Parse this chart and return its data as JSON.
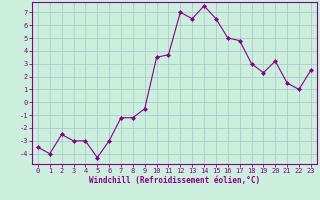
{
  "x": [
    0,
    1,
    2,
    3,
    4,
    5,
    6,
    7,
    8,
    9,
    10,
    11,
    12,
    13,
    14,
    15,
    16,
    17,
    18,
    19,
    20,
    21,
    22,
    23
  ],
  "y": [
    -3.5,
    -4.0,
    -2.5,
    -3.0,
    -3.0,
    -4.3,
    -3.0,
    -1.2,
    -1.2,
    -0.5,
    3.5,
    3.7,
    7.0,
    6.5,
    7.5,
    6.5,
    5.0,
    4.8,
    3.0,
    2.3,
    3.2,
    1.5,
    1.0,
    2.5
  ],
  "line_color": "#880088",
  "marker": "D",
  "marker_size": 2.0,
  "bg_color": "#cceedd",
  "grid_color": "#aacccc",
  "xlabel": "Windchill (Refroidissement éolien,°C)",
  "xlim": [
    -0.5,
    23.5
  ],
  "ylim": [
    -4.8,
    7.8
  ],
  "yticks": [
    -4,
    -3,
    -2,
    -1,
    0,
    1,
    2,
    3,
    4,
    5,
    6,
    7
  ],
  "xticks": [
    0,
    1,
    2,
    3,
    4,
    5,
    6,
    7,
    8,
    9,
    10,
    11,
    12,
    13,
    14,
    15,
    16,
    17,
    18,
    19,
    20,
    21,
    22,
    23
  ],
  "tick_color": "#880088",
  "label_color": "#880088",
  "spine_color": "#880088",
  "tick_fontsize": 5.0,
  "xlabel_fontsize": 5.5
}
